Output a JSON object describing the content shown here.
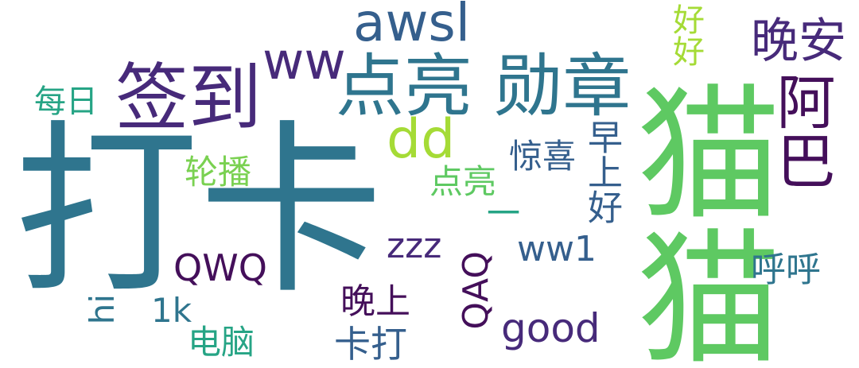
{
  "colors": {
    "teal": "#2f758e",
    "green": "#5ec962",
    "purple": "#472a7a",
    "darkpurple": "#440f5a",
    "lime": "#a5db36",
    "seagreen": "#26a485",
    "grass": "#7ad151",
    "blue": "#355f8d"
  },
  "words": [
    {
      "text": "打卡",
      "color": "#2f758e"
    },
    {
      "text": "猫猫",
      "color": "#5ec962"
    },
    {
      "text": "签到",
      "color": "#472a7a"
    },
    {
      "text": "点亮 勋章",
      "color": "#2f758e"
    },
    {
      "text": "阿巴",
      "color": "#440f5a"
    },
    {
      "text": "晚安",
      "color": "#472a7a"
    },
    {
      "text": "awsl",
      "color": "#355f8d"
    },
    {
      "text": "ww",
      "color": "#472a7a"
    },
    {
      "text": "dd",
      "color": "#a5db36"
    },
    {
      "text": "好好",
      "color": "#a5db36"
    },
    {
      "text": "每日",
      "color": "#26a485"
    },
    {
      "text": "轮播",
      "color": "#7ad151"
    },
    {
      "text": "点亮",
      "color": "#5ec962"
    },
    {
      "text": "惊喜",
      "color": "#355f8d"
    },
    {
      "text": "早上好",
      "color": "#355f8d"
    },
    {
      "text": "一",
      "color": "#26a485"
    },
    {
      "text": "zzz",
      "color": "#472a7a"
    },
    {
      "text": "ww1",
      "color": "#355f8d"
    },
    {
      "text": "QWQ",
      "color": "#440f5a"
    },
    {
      "text": "QAQ",
      "color": "#440f5a"
    },
    {
      "text": "呼呼",
      "color": "#2f758e"
    },
    {
      "text": "hi",
      "color": "#2f758e"
    },
    {
      "text": "1k",
      "color": "#2f758e"
    },
    {
      "text": "晚上",
      "color": "#440f5a"
    },
    {
      "text": "卡打",
      "color": "#355f8d"
    },
    {
      "text": "good",
      "color": "#472a7a"
    },
    {
      "text": "电脑",
      "color": "#26a485"
    }
  ]
}
